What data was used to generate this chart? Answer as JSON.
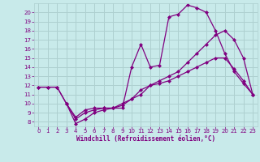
{
  "background_color": "#c8eaea",
  "grid_color": "#aed0d0",
  "line_color": "#800080",
  "marker_color": "#800080",
  "xlabel": "Windchill (Refroidissement éolien,°C)",
  "xlabel_color": "#800080",
  "tick_color": "#800080",
  "xlim": [
    -0.5,
    23.5
  ],
  "ylim": [
    7.5,
    21.0
  ],
  "xticks": [
    0,
    1,
    2,
    3,
    4,
    5,
    6,
    7,
    8,
    9,
    10,
    11,
    12,
    13,
    14,
    15,
    16,
    17,
    18,
    19,
    20,
    21,
    22,
    23
  ],
  "yticks": [
    8,
    9,
    10,
    11,
    12,
    13,
    14,
    15,
    16,
    17,
    18,
    19,
    20
  ],
  "series1_x": [
    0,
    1,
    2,
    3,
    4,
    5,
    6,
    7,
    8,
    9,
    10,
    11,
    12,
    13,
    14,
    15,
    16,
    17,
    18,
    19,
    20,
    21,
    22,
    23
  ],
  "series1_y": [
    11.8,
    11.8,
    11.8,
    10.0,
    8.5,
    9.3,
    9.5,
    9.5,
    9.5,
    10.0,
    10.5,
    11.0,
    12.0,
    12.2,
    12.5,
    13.0,
    13.5,
    14.0,
    14.5,
    15.0,
    15.0,
    13.8,
    12.5,
    11.0
  ],
  "series2_x": [
    0,
    1,
    2,
    3,
    4,
    5,
    6,
    7,
    8,
    9,
    10,
    11,
    12,
    13,
    14,
    15,
    16,
    17,
    18,
    19,
    20,
    21,
    22,
    23
  ],
  "series2_y": [
    11.8,
    11.8,
    11.8,
    10.0,
    7.8,
    8.3,
    9.0,
    9.3,
    9.5,
    9.5,
    14.0,
    16.5,
    14.0,
    14.2,
    19.5,
    19.8,
    20.8,
    20.5,
    20.0,
    18.0,
    15.5,
    13.5,
    12.2,
    11.0
  ],
  "series3_x": [
    3,
    4,
    5,
    6,
    7,
    8,
    9,
    10,
    11,
    12,
    13,
    14,
    15,
    16,
    17,
    18,
    19,
    20,
    21,
    22,
    23
  ],
  "series3_y": [
    10.0,
    8.3,
    9.0,
    9.3,
    9.5,
    9.5,
    9.8,
    10.5,
    11.5,
    12.0,
    12.5,
    13.0,
    13.5,
    14.5,
    15.5,
    16.5,
    17.5,
    18.0,
    17.0,
    15.0,
    11.0
  ]
}
